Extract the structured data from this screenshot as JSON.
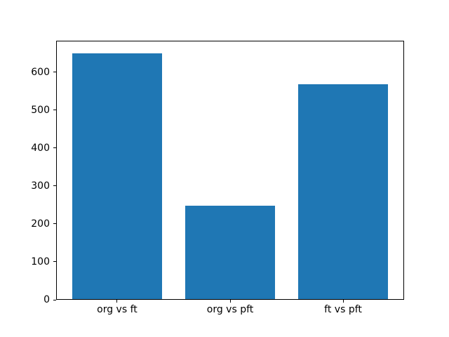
{
  "chart_data": {
    "type": "bar",
    "title": "",
    "xlabel": "",
    "ylabel": "",
    "categories": [
      "org vs ft",
      "org vs pft",
      "ft vs pft"
    ],
    "values": [
      650,
      248,
      568
    ],
    "yticks": [
      0,
      100,
      200,
      300,
      400,
      500,
      600
    ],
    "ylim": [
      0,
      682.5
    ],
    "xlim": [
      -0.54,
      2.54
    ],
    "bar_width": 0.8,
    "bar_color": "#1f77b4",
    "spine_color": "#000000",
    "tick_color": "#000000",
    "tick_label_color": "#000000",
    "background_color": "#ffffff",
    "grid": false,
    "legend": null
  }
}
